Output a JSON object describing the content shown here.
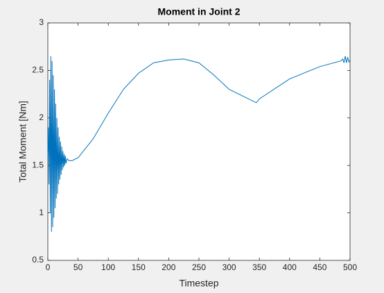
{
  "chart_data": {
    "type": "line",
    "title": "Moment in Joint 2",
    "x_label": "Timestep",
    "y_label": "Total Moment [Nm]",
    "x": [
      0,
      1,
      2,
      3,
      4,
      5,
      6,
      7,
      8,
      9,
      10,
      11,
      12,
      13,
      14,
      15,
      16,
      17,
      18,
      19,
      20,
      21,
      22,
      23,
      24,
      25,
      26,
      27,
      28,
      29,
      30,
      32,
      35,
      40,
      50,
      75,
      100,
      125,
      150,
      175,
      200,
      225,
      250,
      275,
      300,
      345,
      350,
      400,
      450,
      485,
      488,
      490,
      492,
      494,
      496,
      498,
      500
    ],
    "values": [
      1.6,
      1.9,
      1.3,
      2.4,
      1.0,
      2.65,
      0.8,
      2.6,
      0.85,
      2.45,
      0.95,
      2.3,
      1.05,
      2.15,
      1.15,
      2.0,
      1.2,
      1.9,
      1.3,
      1.8,
      1.35,
      1.75,
      1.4,
      1.7,
      1.45,
      1.65,
      1.48,
      1.62,
      1.5,
      1.6,
      1.52,
      1.57,
      1.55,
      1.55,
      1.58,
      1.78,
      2.05,
      2.3,
      2.47,
      2.58,
      2.61,
      2.62,
      2.58,
      2.45,
      2.3,
      2.16,
      2.2,
      2.41,
      2.54,
      2.6,
      2.62,
      2.58,
      2.65,
      2.58,
      2.64,
      2.59,
      2.61
    ],
    "color": "#0072bd",
    "xlim": [
      0,
      500
    ],
    "xticks": [
      0,
      50,
      100,
      150,
      200,
      250,
      300,
      350,
      400,
      450,
      500
    ],
    "ylim": [
      0.5,
      3
    ],
    "yticks": [
      0.5,
      1,
      1.5,
      2,
      2.5,
      3
    ]
  }
}
